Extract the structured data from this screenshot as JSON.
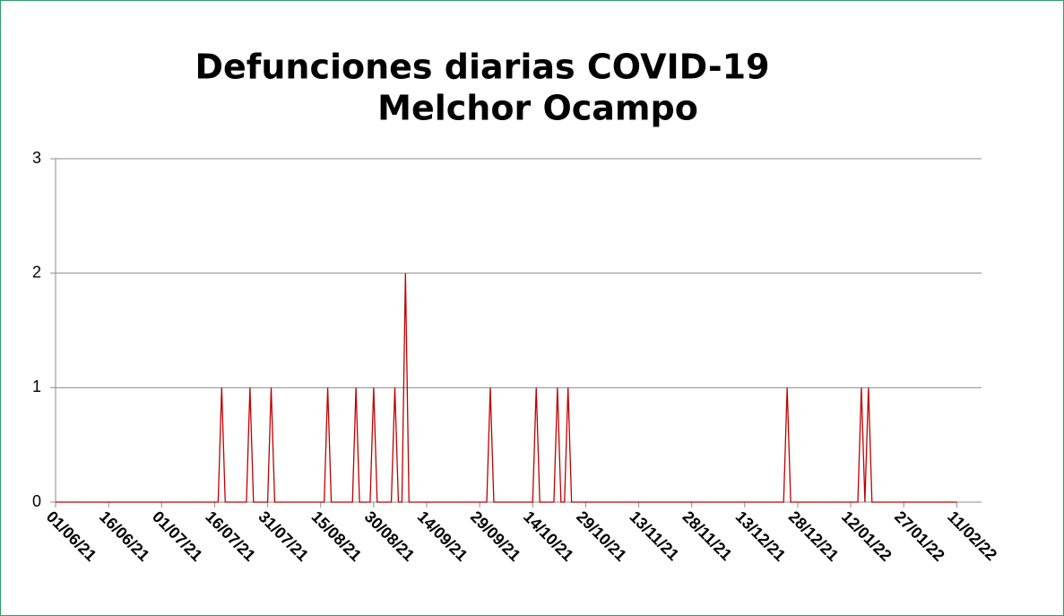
{
  "chart_data": {
    "type": "line",
    "title": [
      "Defunciones diarias COVID-19",
      "Melchor Ocampo"
    ],
    "x": [
      "01/06/21",
      "17/07/21",
      "18/07/21",
      "19/07/21",
      "25/07/21",
      "26/07/21",
      "27/07/21",
      "31/07/21",
      "01/08/21",
      "02/08/21",
      "16/08/21",
      "17/08/21",
      "18/08/21",
      "24/08/21",
      "25/08/21",
      "26/08/21",
      "29/08/21",
      "30/08/21",
      "31/08/21",
      "04/09/21",
      "05/09/21",
      "06/09/21",
      "07/09/21",
      "08/09/21",
      "09/09/21",
      "01/10/21",
      "02/10/21",
      "03/10/21",
      "14/10/21",
      "15/10/21",
      "16/10/21",
      "20/10/21",
      "21/10/21",
      "22/10/21",
      "23/10/21",
      "24/10/21",
      "25/10/21",
      "24/12/21",
      "25/12/21",
      "26/12/21",
      "14/01/22",
      "15/01/22",
      "16/01/22",
      "17/01/22",
      "18/01/22",
      "11/02/22"
    ],
    "series": [
      {
        "name": "Defunciones",
        "color": "#c00000",
        "values": [
          0,
          0,
          1,
          0,
          0,
          1,
          0,
          0,
          1,
          0,
          0,
          1,
          0,
          0,
          1,
          0,
          0,
          1,
          0,
          0,
          1,
          0,
          0,
          2,
          0,
          0,
          1,
          0,
          0,
          1,
          0,
          0,
          1,
          0,
          0,
          1,
          0,
          0,
          1,
          0,
          0,
          1,
          0,
          1,
          0,
          0
        ]
      }
    ],
    "xlim": [
      "01/06/21",
      "18/02/22"
    ],
    "xticks": [
      "01/06/21",
      "16/06/21",
      "01/07/21",
      "16/07/21",
      "31/07/21",
      "15/08/21",
      "30/08/21",
      "14/09/21",
      "29/09/21",
      "14/10/21",
      "29/10/21",
      "13/11/21",
      "28/11/21",
      "13/12/21",
      "28/12/21",
      "12/01/22",
      "27/01/22",
      "11/02/22"
    ],
    "ylim": [
      0,
      3
    ],
    "yticks": [
      0,
      1,
      2,
      3
    ],
    "grid": true
  }
}
